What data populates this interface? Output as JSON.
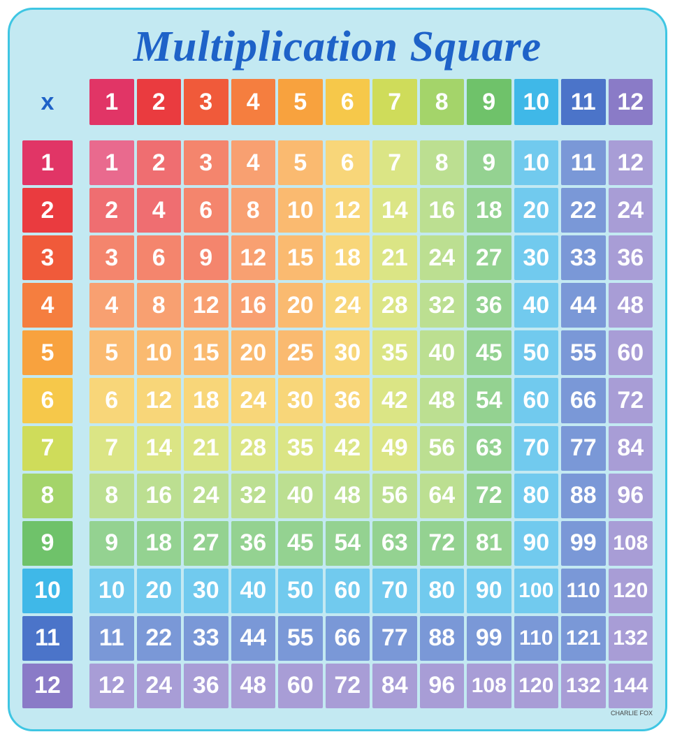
{
  "title": "Multiplication Square",
  "corner_symbol": "x",
  "size": 12,
  "board": {
    "background_color": "#c3e9f2",
    "border_color": "#3fc6e3",
    "title_color": "#1e62c8",
    "corner_text_color": "#1e62c8",
    "cell_text_color": "#ffffff",
    "cell_fontsize": 34,
    "title_fontsize": 62
  },
  "colors": {
    "1": "#e13566",
    "2": "#ea3b3f",
    "3": "#f05a3a",
    "4": "#f57e3f",
    "5": "#f8a23e",
    "6": "#f6c84a",
    "7": "#cfdc5a",
    "8": "#a4d46a",
    "9": "#6fc26a",
    "10": "#3fb8e8",
    "11": "#4b74c9",
    "12": "#8a7bc7"
  },
  "header_alpha": 1.0,
  "body_alpha": 0.74,
  "footer_text": "CHARLIE FOX"
}
